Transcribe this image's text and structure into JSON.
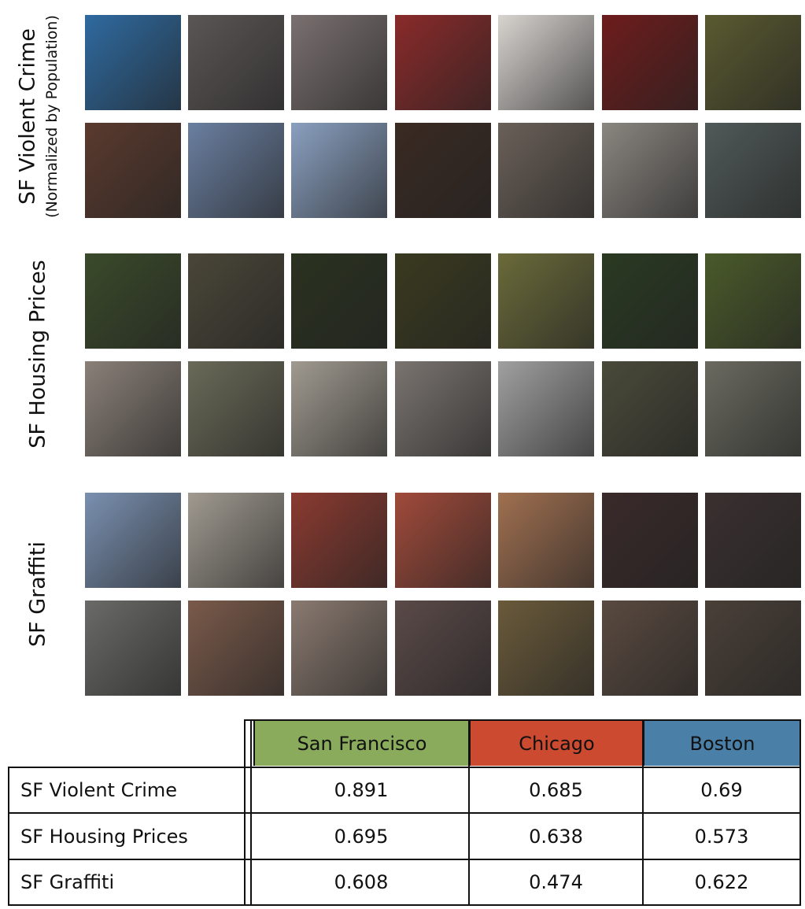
{
  "figure": {
    "groups": [
      {
        "label": "SF Violent Crime",
        "sublabel": "(Normalized by Population)"
      },
      {
        "label": "SF Housing Prices"
      },
      {
        "label": "SF Graffiti"
      }
    ]
  },
  "table": {
    "header": [
      "San Francisco",
      "Chicago",
      "Boston"
    ],
    "rows": [
      [
        "SF Violent Crime",
        0.891,
        0.685,
        0.69
      ],
      [
        "SF Housing Prices",
        0.695,
        0.638,
        0.573
      ],
      [
        "SF Graffiti",
        0.608,
        0.474,
        0.622
      ]
    ]
  }
}
